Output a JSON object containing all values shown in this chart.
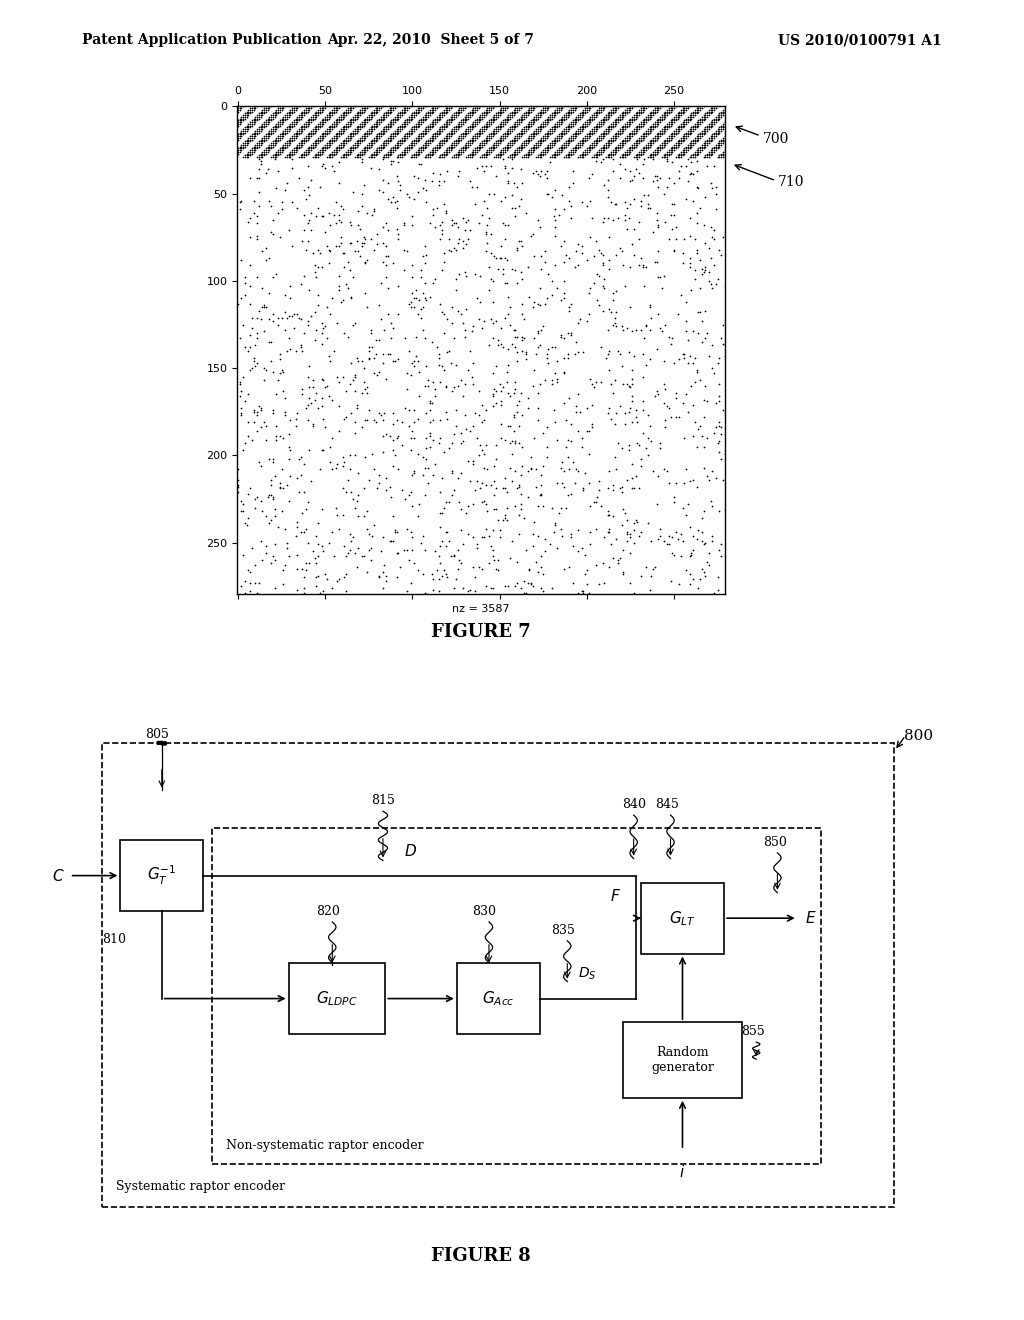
{
  "page_title_left": "Patent Application Publication",
  "page_title_center": "Apr. 22, 2010  Sheet 5 of 7",
  "page_title_right": "US 2010/0100791 A1",
  "fig7_label": "FIGURE 7",
  "fig8_label": "FIGURE 8",
  "fig7_label_ref": "700",
  "fig7_arrow_ref": "710",
  "fig8_label_ref": "800",
  "background_color": "#ffffff",
  "text_color": "#000000",
  "matrix_size": 280,
  "hatch_rows": 30,
  "sparse_dots": 2000,
  "labels_805": "805",
  "labels_810": "810",
  "labels_815": "815",
  "labels_820": "820",
  "labels_830": "830",
  "labels_835": "835",
  "labels_840": "840",
  "labels_845": "845",
  "labels_850": "850",
  "labels_855": "855",
  "nonsys_label": "Non-systematic raptor encoder",
  "sys_label": "Systematic raptor encoder"
}
